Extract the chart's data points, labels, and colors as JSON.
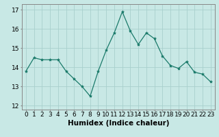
{
  "x": [
    0,
    1,
    2,
    3,
    4,
    5,
    6,
    7,
    8,
    9,
    10,
    11,
    12,
    13,
    14,
    15,
    16,
    17,
    18,
    19,
    20,
    21,
    22,
    23
  ],
  "y": [
    13.8,
    14.5,
    14.4,
    14.4,
    14.4,
    13.8,
    13.4,
    13.0,
    12.5,
    13.8,
    14.9,
    15.8,
    16.9,
    15.9,
    15.2,
    15.8,
    15.5,
    14.6,
    14.1,
    13.95,
    14.3,
    13.75,
    13.65,
    13.25
  ],
  "line_color": "#1a7a6a",
  "marker": "*",
  "marker_size": 3,
  "bg_color": "#c8e8e5",
  "grid_color": "#a8d0cd",
  "xlabel": "Humidex (Indice chaleur)",
  "xlabel_fontsize": 7.5,
  "ylim": [
    11.8,
    17.3
  ],
  "yticks": [
    12,
    13,
    14,
    15,
    16,
    17
  ],
  "xtick_labels": [
    "0",
    "1",
    "2",
    "3",
    "4",
    "5",
    "6",
    "7",
    "8",
    "9",
    "10",
    "11",
    "12",
    "13",
    "14",
    "15",
    "16",
    "17",
    "18",
    "19",
    "20",
    "21",
    "22",
    "23"
  ],
  "tick_fontsize": 6.5
}
